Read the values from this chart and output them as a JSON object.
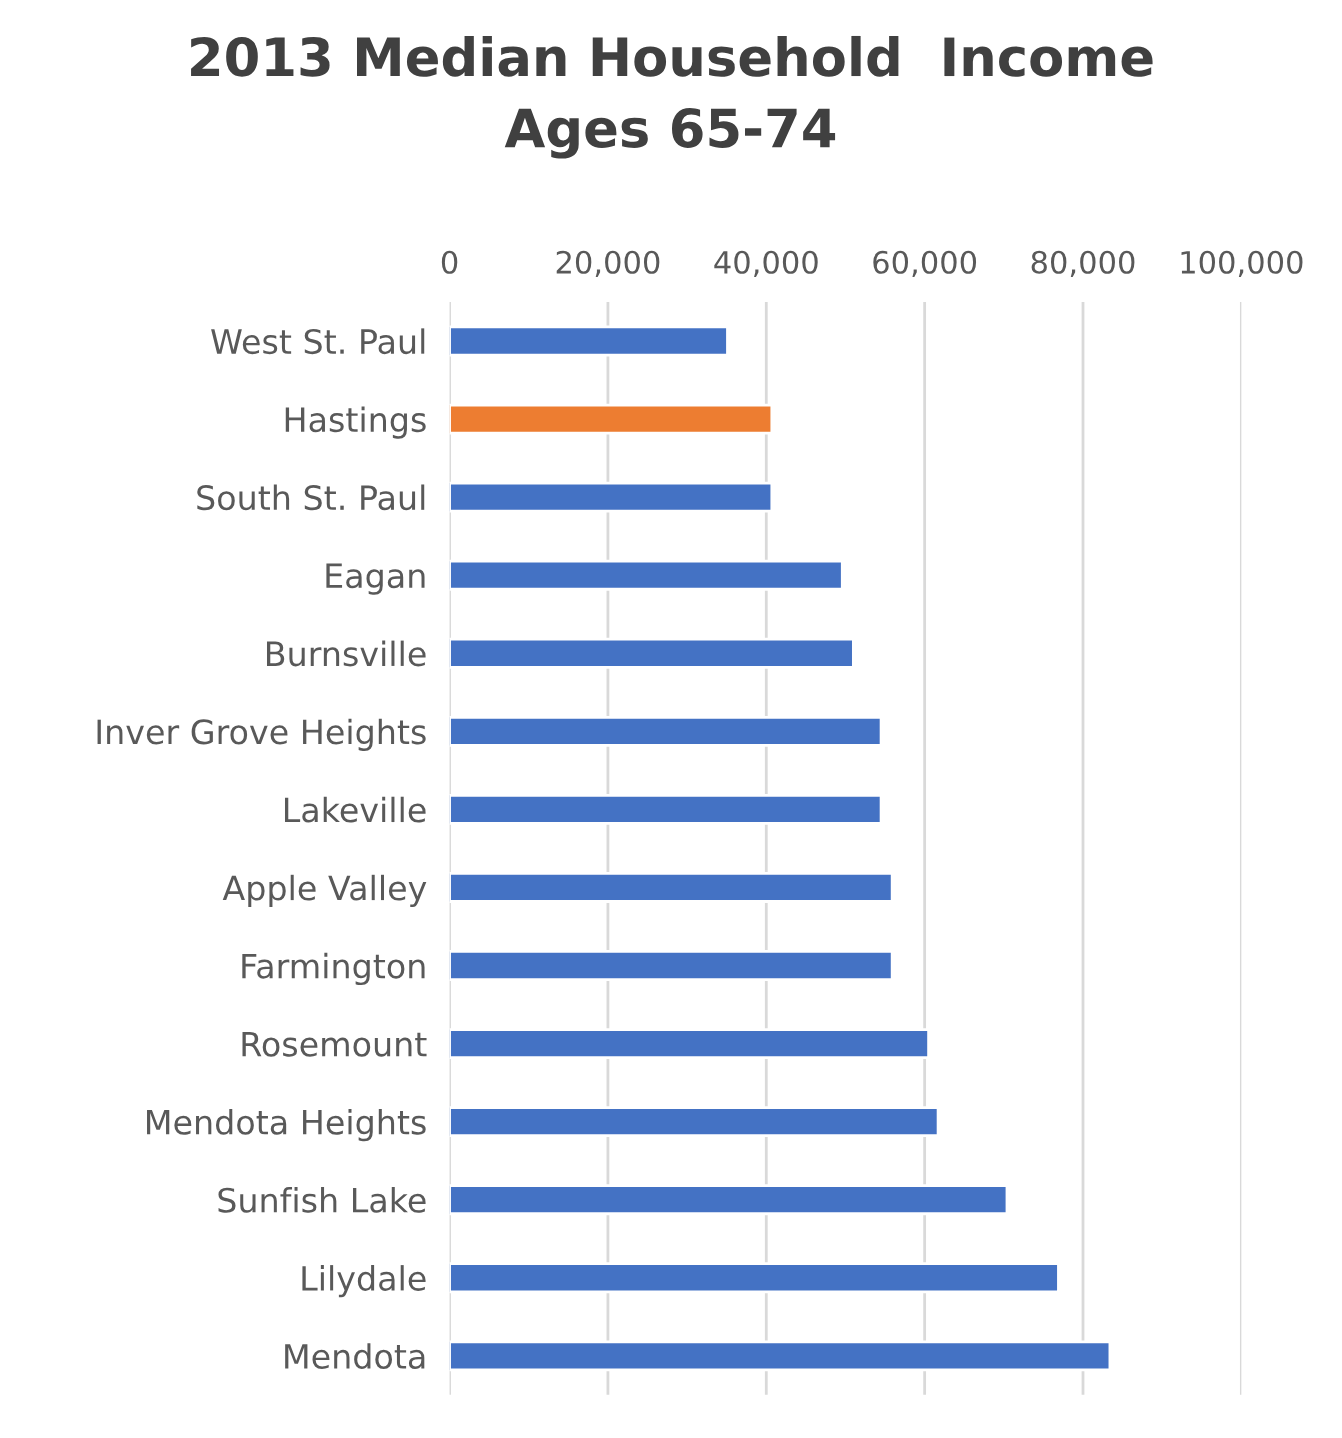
{
  "chart_data": {
    "type": "bar",
    "orientation": "horizontal",
    "title": "2013 Median Household  Income\nAges 65-74",
    "categories": [
      "West St. Paul",
      "Hastings",
      "South St. Paul",
      "Eagan",
      "Burnsville",
      "Inver Grove Heights",
      "Lakeville",
      "Apple Valley",
      "Farmington",
      "Rosemount",
      "Mendota Heights",
      "Sunfish Lake",
      "Lilydale",
      "Mendota"
    ],
    "values": [
      35100,
      40700,
      40700,
      49600,
      51000,
      54500,
      54500,
      55900,
      55900,
      60500,
      61700,
      70400,
      76900,
      83400
    ],
    "colors": [
      "#4472c4",
      "#ed7d31",
      "#4472c4",
      "#4472c4",
      "#4472c4",
      "#4472c4",
      "#4472c4",
      "#4472c4",
      "#4472c4",
      "#4472c4",
      "#4472c4",
      "#4472c4",
      "#4472c4",
      "#4472c4"
    ],
    "xlim": [
      0,
      100000
    ],
    "xticks": [
      {
        "value": 0,
        "label": "0"
      },
      {
        "value": 20000,
        "label": "20,000"
      },
      {
        "value": 40000,
        "label": "40,000"
      },
      {
        "value": 60000,
        "label": "60,000"
      },
      {
        "value": 80000,
        "label": "80,000"
      },
      {
        "value": 100000,
        "label": "100,000"
      }
    ],
    "grid": "x",
    "legend": false
  }
}
